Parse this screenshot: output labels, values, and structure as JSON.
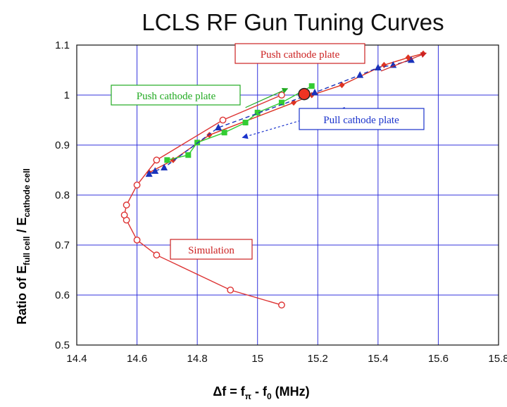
{
  "chart_data": {
    "type": "scatter",
    "title": "LCLS RF Gun Tuning Curves",
    "xlabel": {
      "prefix": "Δf = f",
      "sub1": "π",
      "mid": " - f",
      "sub2": "0",
      "suffix": " (MHz)"
    },
    "ylabel": {
      "prefix": "Ratio of E",
      "sub1": "full cell",
      "mid": " / E",
      "sub2": "cathode cell"
    },
    "xlim": [
      14.4,
      15.8
    ],
    "ylim": [
      0.5,
      1.1
    ],
    "x_ticks": [
      "14.4",
      "14.6",
      "14.8",
      "15",
      "15.2",
      "15.4",
      "15.6",
      "15.8"
    ],
    "y_ticks": [
      "0.5",
      "0.6",
      "0.7",
      "0.8",
      "0.9",
      "1",
      "1.1"
    ],
    "x_tick_values": [
      14.4,
      14.6,
      14.8,
      15.0,
      15.2,
      15.4,
      15.6,
      15.8
    ],
    "y_tick_values": [
      0.5,
      0.6,
      0.7,
      0.8,
      0.9,
      1.0,
      1.1
    ],
    "grid": true,
    "colors": {
      "grid": "#3333dd",
      "simulation": "#dd3333",
      "push_red": "#dd3322",
      "push_green": "#33cc33",
      "pull_blue": "#1a33bb",
      "marker": "#ee3322"
    },
    "series": [
      {
        "key": "simulation",
        "marker": "open-circle",
        "color": "#dd3333",
        "x": [
          15.08,
          14.91,
          14.665,
          14.6,
          14.565,
          14.558,
          14.565,
          14.6,
          14.665,
          14.885,
          15.08
        ],
        "y": [
          0.58,
          0.61,
          0.68,
          0.71,
          0.75,
          0.76,
          0.78,
          0.82,
          0.87,
          0.95,
          1.0
        ]
      },
      {
        "key": "push_red",
        "marker": "diamond",
        "color": "#dd3322",
        "x": [
          14.64,
          14.72,
          14.84,
          15.12,
          15.18,
          15.28,
          15.42,
          15.5,
          15.55
        ],
        "y": [
          0.845,
          0.87,
          0.92,
          0.985,
          1.0,
          1.02,
          1.06,
          1.075,
          1.083
        ]
      },
      {
        "key": "push_green",
        "marker": "square",
        "color": "#33cc33",
        "x": [
          14.7,
          14.77,
          14.8,
          14.89,
          14.96,
          15.0,
          15.08,
          15.18
        ],
        "y": [
          0.87,
          0.88,
          0.905,
          0.925,
          0.945,
          0.965,
          0.985,
          1.018
        ]
      },
      {
        "key": "pull_blue",
        "marker": "triangle",
        "color": "#1a33bb",
        "x": [
          14.64,
          14.66,
          14.69,
          14.87,
          15.19,
          15.34,
          15.4,
          15.45,
          15.51
        ],
        "y": [
          0.842,
          0.848,
          0.855,
          0.935,
          1.005,
          1.04,
          1.055,
          1.06,
          1.07
        ]
      }
    ],
    "operating_point": {
      "x": 15.155,
      "y": 1.002,
      "color": "#ee3322"
    },
    "annotations": [
      {
        "key": "push_red",
        "text": "Push cathode plate",
        "color": "#cc2222",
        "arrow_from": [
          15.41,
          1.048
        ],
        "arrow_to": [
          15.56,
          1.084
        ]
      },
      {
        "key": "push_green",
        "text": "Push cathode plate",
        "color": "#22aa22",
        "arrow_from": [
          14.96,
          0.975
        ],
        "arrow_to": [
          15.1,
          1.013
        ]
      },
      {
        "key": "pull_blue",
        "text": "Pull cathode plate",
        "color": "#1a33cc",
        "arrow_from": [
          15.29,
          0.975
        ],
        "arrow_to": [
          14.95,
          0.915
        ]
      },
      {
        "key": "simulation",
        "text": "Simulation",
        "color": "#cc2222"
      }
    ]
  }
}
